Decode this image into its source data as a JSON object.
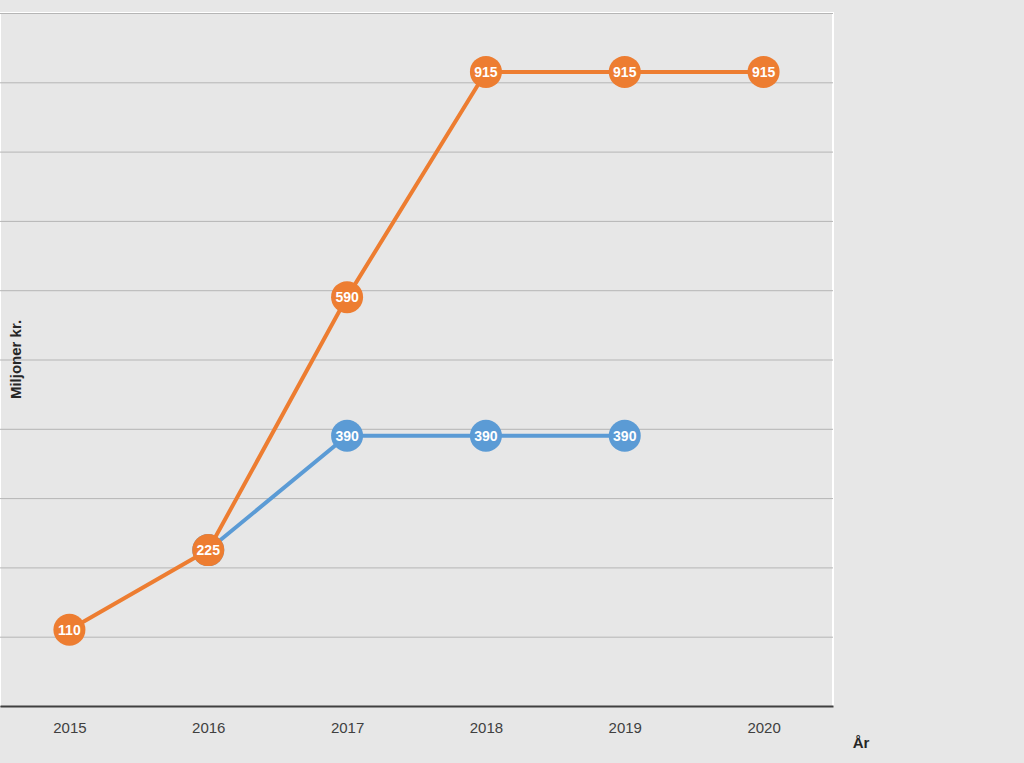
{
  "chart_data": {
    "type": "line",
    "x_label": "År",
    "y_label": "Miljoner kr.",
    "categories": [
      "2015",
      "2016",
      "2017",
      "2018",
      "2019",
      "2020"
    ],
    "series": [
      {
        "color": "#5B9BD5",
        "values": [
          null,
          225,
          390,
          390,
          390,
          null
        ]
      },
      {
        "color": "#ED7D31",
        "values": [
          110,
          225,
          590,
          915,
          915,
          915
        ]
      }
    ],
    "ylim": [
      0,
      1000
    ],
    "yticks": [
      0,
      100,
      200,
      300,
      400,
      500,
      600,
      700,
      800,
      900,
      1000
    ],
    "grid": true,
    "data_labels": true,
    "tick_labels": "x",
    "marker": "circle",
    "line_style": "solid"
  }
}
